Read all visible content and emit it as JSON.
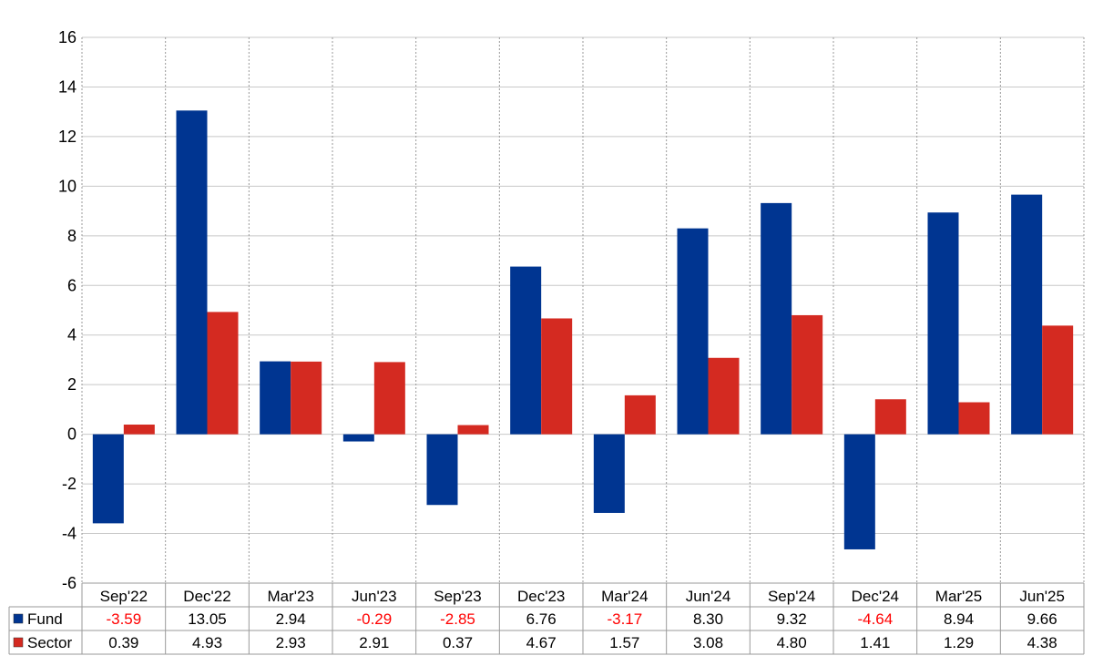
{
  "chart_data": {
    "type": "bar",
    "categories": [
      "Sep'22",
      "Dec'22",
      "Mar'23",
      "Jun'23",
      "Sep'23",
      "Dec'23",
      "Mar'24",
      "Jun'24",
      "Sep'24",
      "Dec'24",
      "Mar'25",
      "Jun'25"
    ],
    "series": [
      {
        "name": "Fund",
        "color": "#003591",
        "values": [
          -3.59,
          13.05,
          2.94,
          -0.29,
          -2.85,
          6.76,
          -3.17,
          8.3,
          9.32,
          -4.64,
          8.94,
          9.66
        ],
        "labels": [
          "-3.59",
          "13.05",
          "2.94",
          "-0.29",
          "-2.85",
          "6.76",
          "-3.17",
          "8.30",
          "9.32",
          "-4.64",
          "8.94",
          "9.66"
        ]
      },
      {
        "name": "Sector",
        "color": "#d42a21",
        "values": [
          0.39,
          4.93,
          2.93,
          2.91,
          0.37,
          4.67,
          1.57,
          3.08,
          4.8,
          1.41,
          1.29,
          4.38
        ],
        "labels": [
          "0.39",
          "4.93",
          "2.93",
          "2.91",
          "0.37",
          "4.67",
          "1.57",
          "3.08",
          "4.80",
          "1.41",
          "1.29",
          "4.38"
        ]
      }
    ],
    "yticks": [
      "16",
      "14",
      "12",
      "10",
      "8",
      "6",
      "4",
      "2",
      "0",
      "-2",
      "-4",
      "-6"
    ],
    "ylim": [
      -6,
      16
    ],
    "grid": true,
    "legend": "table-below",
    "negative_label_color": "#ff0000"
  }
}
